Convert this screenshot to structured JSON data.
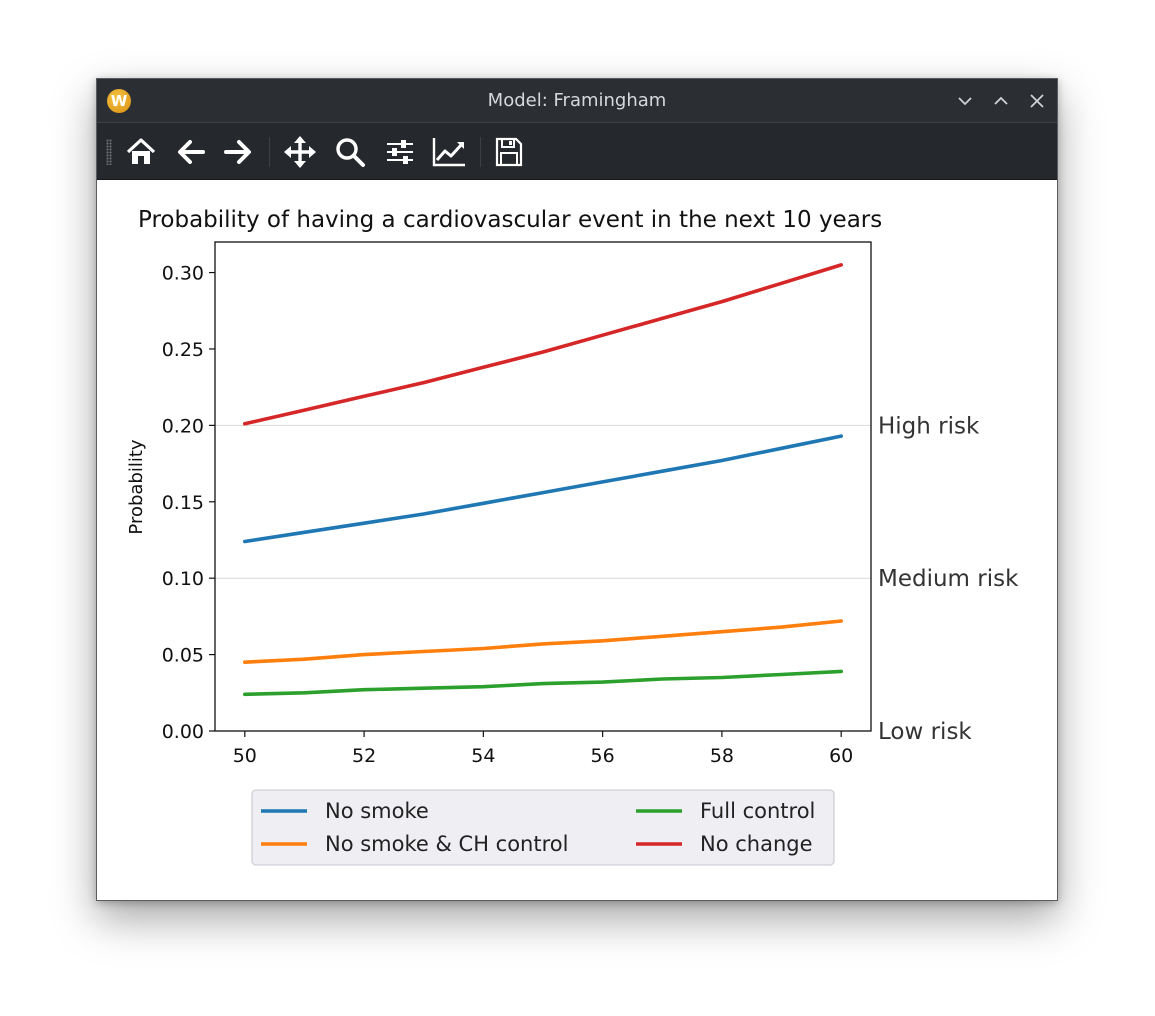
{
  "window": {
    "title": "Model: Framingham",
    "app_icon_letter": "W"
  },
  "toolbar": {
    "buttons": [
      "home",
      "back",
      "forward",
      "pan",
      "zoom",
      "configure-subplots",
      "edit-axis",
      "save"
    ]
  },
  "chart_data": {
    "type": "line",
    "title": "Probability of having a cardiovascular event in the next 10 years",
    "xlabel": "",
    "ylabel": "Probability",
    "xlim": [
      49.5,
      60.5
    ],
    "ylim": [
      0,
      0.32
    ],
    "x_ticks": [
      "50",
      "52",
      "54",
      "56",
      "58",
      "60"
    ],
    "y_ticks": [
      "0.00",
      "0.05",
      "0.10",
      "0.15",
      "0.20",
      "0.25",
      "0.30"
    ],
    "x": [
      50,
      51,
      52,
      53,
      54,
      55,
      56,
      57,
      58,
      59,
      60
    ],
    "series": [
      {
        "name": "No smoke",
        "color": "#1f77b4",
        "values": [
          0.124,
          0.13,
          0.136,
          0.142,
          0.149,
          0.156,
          0.163,
          0.17,
          0.177,
          0.185,
          0.193
        ]
      },
      {
        "name": "No smoke & CH control",
        "color": "#ff7f0e",
        "values": [
          0.045,
          0.047,
          0.05,
          0.052,
          0.054,
          0.057,
          0.059,
          0.062,
          0.065,
          0.068,
          0.072
        ]
      },
      {
        "name": "Full control",
        "color": "#2ca02c",
        "values": [
          0.024,
          0.025,
          0.027,
          0.028,
          0.029,
          0.031,
          0.032,
          0.034,
          0.035,
          0.037,
          0.039
        ]
      },
      {
        "name": "No change",
        "color": "#d62728",
        "values": [
          0.201,
          0.21,
          0.219,
          0.228,
          0.238,
          0.248,
          0.259,
          0.27,
          0.281,
          0.293,
          0.305
        ]
      }
    ],
    "risk_levels": [
      {
        "label": "High risk",
        "value": 0.2
      },
      {
        "label": "Medium risk",
        "value": 0.1
      },
      {
        "label": "Low risk",
        "value": 0.0
      }
    ],
    "grid": "horizontal at risk thresholds",
    "legend_placement": "below the plot, two columns"
  }
}
